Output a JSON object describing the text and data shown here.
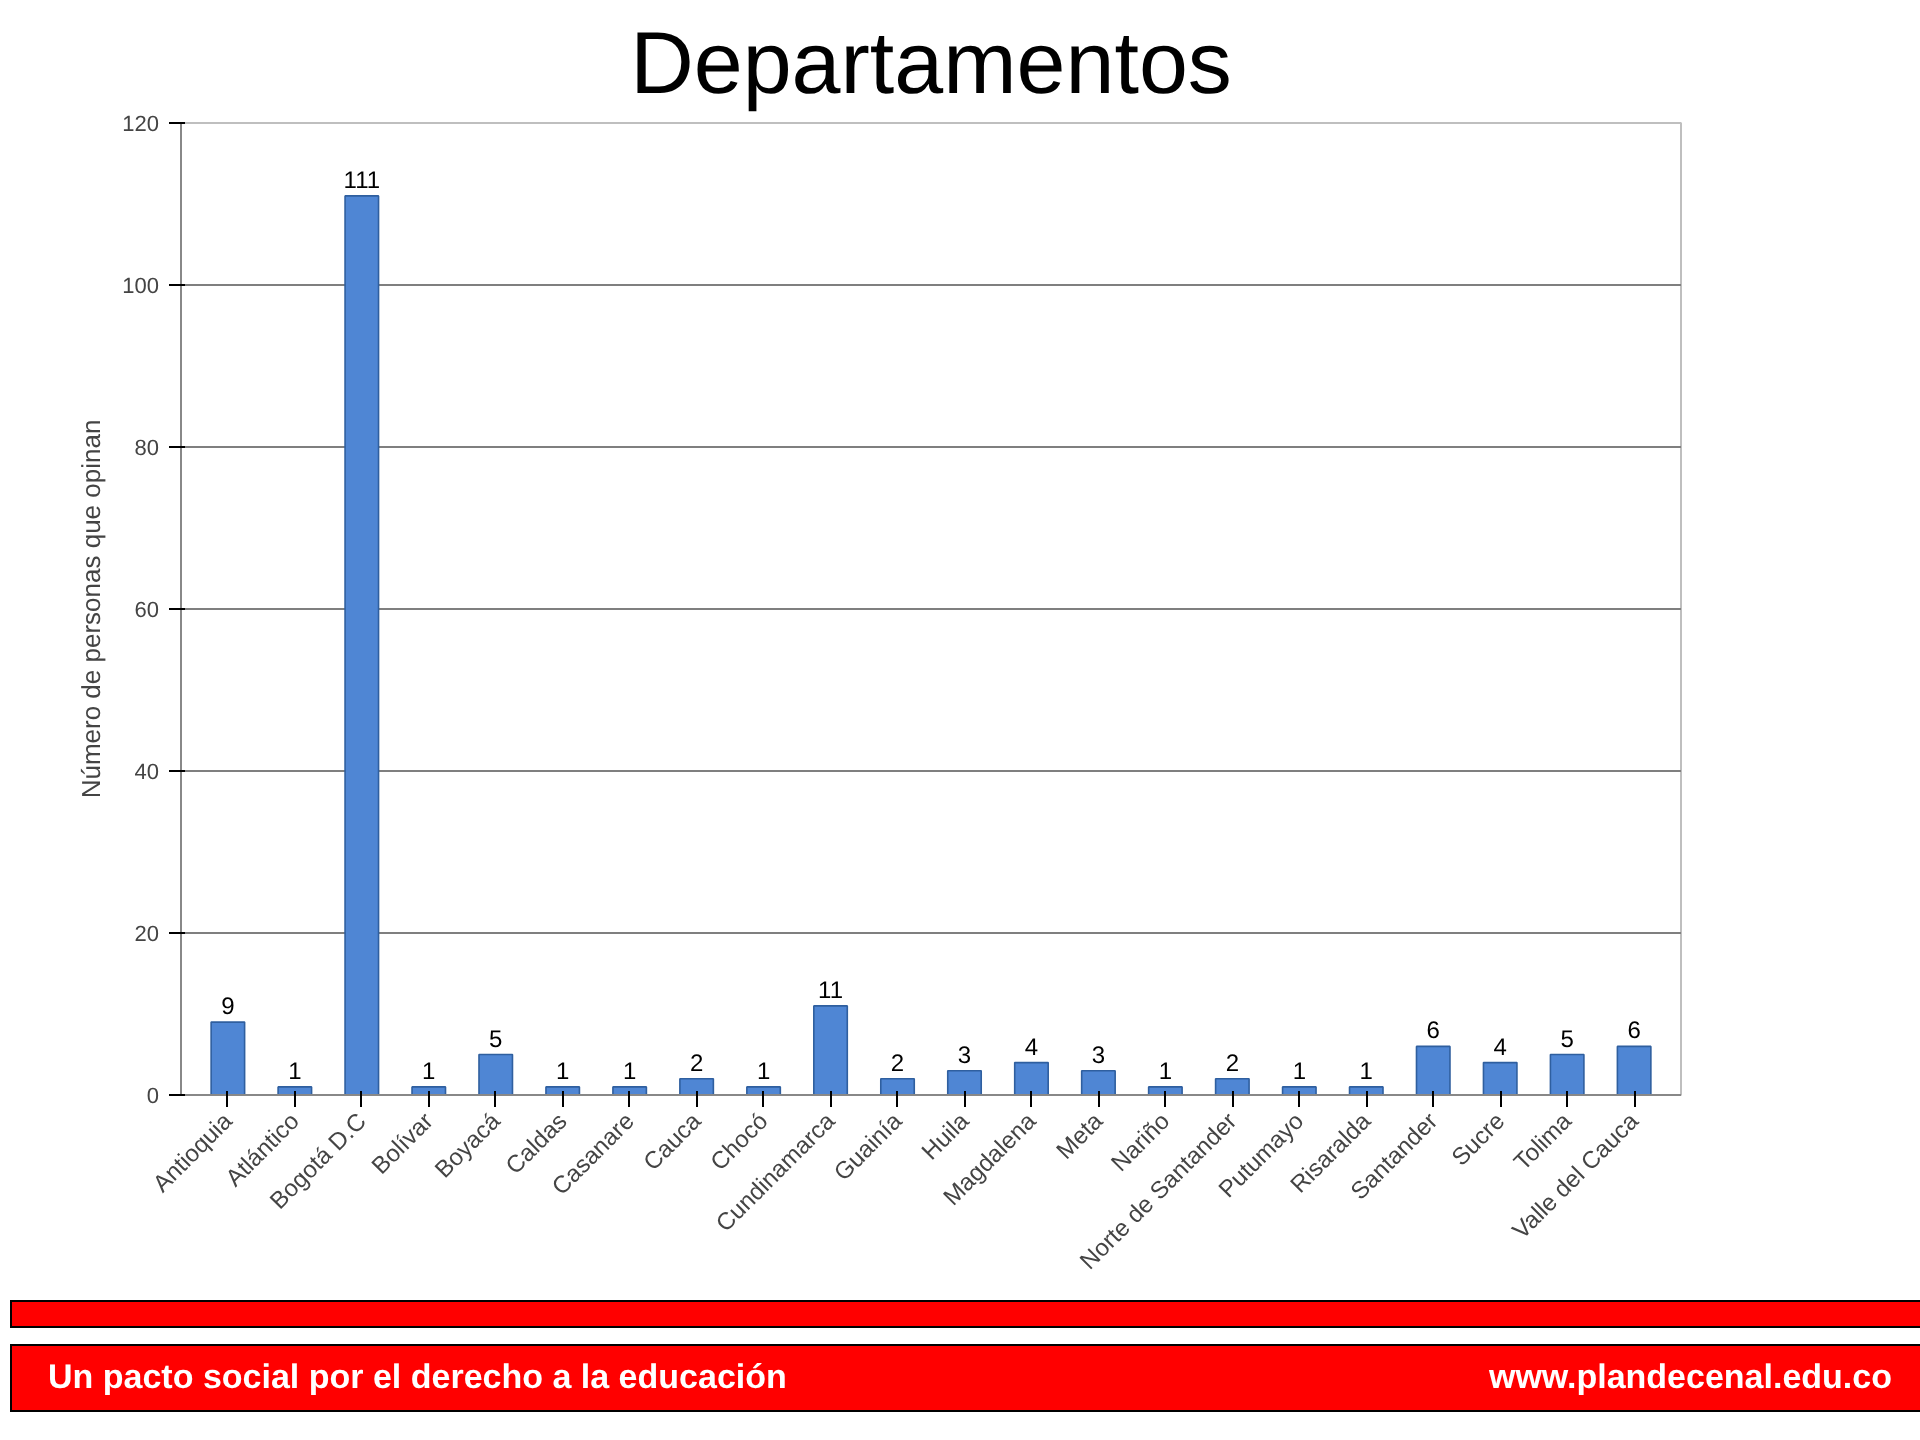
{
  "chart_data": {
    "type": "bar",
    "title": "Departamentos",
    "ylabel": "Número de personas que opinan",
    "categories": [
      "Antioquia",
      "Atlántico",
      "Bogotá D.C",
      "Bolívar",
      "Boyacá",
      "Caldas",
      "Casanare",
      "Cauca",
      "Chocó",
      "Cundinamarca",
      "Guainía",
      "Huila",
      "Magdalena",
      "Meta",
      "Nariño",
      "Norte de Santander",
      "Putumayo",
      "Risaralda",
      "Santander",
      "Sucre",
      "Tolima",
      "Valle del Cauca"
    ],
    "values": [
      9,
      1,
      111,
      1,
      5,
      1,
      1,
      2,
      1,
      11,
      2,
      3,
      4,
      3,
      1,
      2,
      1,
      1,
      6,
      4,
      5,
      6
    ],
    "color": "#4f86d4",
    "ylim": [
      0,
      120
    ],
    "yticks": [
      0,
      20,
      40,
      60,
      80,
      100,
      120
    ],
    "grid": "y",
    "data_labels": true,
    "annotations": [
      "Un pacto social por el derecho a la educación",
      "www.plandecenal.edu.co"
    ]
  }
}
